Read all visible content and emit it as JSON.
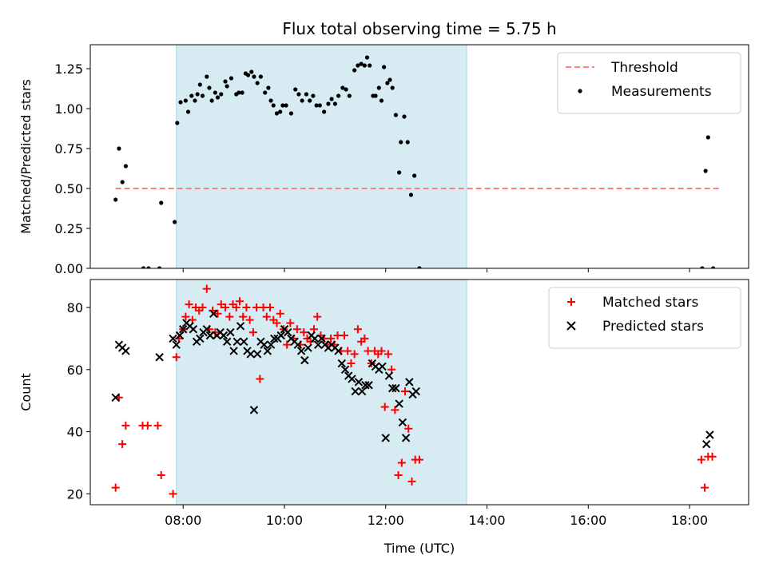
{
  "title": "Flux total observing time = 5.75 h",
  "colors": {
    "shade": "#add8e6",
    "threshold": "#ff7f7f",
    "matched": "#ff0000",
    "predicted": "#000000",
    "measurement": "#000000"
  },
  "chart_data": [
    {
      "type": "scatter",
      "panel": "top",
      "title": "Flux total observing time = 5.75 h",
      "xlabel": "",
      "ylabel": "Matched/Predicted stars",
      "xlim": [
        "06:10",
        "19:10"
      ],
      "ylim": [
        0,
        1.4
      ],
      "yticks": [
        0.0,
        0.25,
        0.5,
        0.75,
        1.0,
        1.25
      ],
      "ytick_labels": [
        "0.00",
        "0.25",
        "0.50",
        "0.75",
        "1.00",
        "1.25"
      ],
      "xticks": [
        "08:00",
        "10:00",
        "12:00",
        "14:00",
        "16:00",
        "18:00"
      ],
      "shaded_span": [
        "07:52",
        "13:36"
      ],
      "legend_position": "upper right",
      "threshold": {
        "name": "Threshold",
        "value": 0.5,
        "x_range": [
          "06:40",
          "18:35"
        ],
        "style": "dashed"
      },
      "series": [
        {
          "name": "Measurements",
          "marker": "dot",
          "points": [
            [
              "06:40",
              0.43
            ],
            [
              "06:44",
              0.75
            ],
            [
              "06:48",
              0.54
            ],
            [
              "06:52",
              0.64
            ],
            [
              "07:13",
              0.0
            ],
            [
              "07:19",
              0.0
            ],
            [
              "07:32",
              0.0
            ],
            [
              "07:34",
              0.41
            ],
            [
              "07:50",
              0.29
            ],
            [
              "07:53",
              0.91
            ],
            [
              "07:57",
              1.04
            ],
            [
              "08:03",
              1.05
            ],
            [
              "08:06",
              0.98
            ],
            [
              "08:10",
              1.08
            ],
            [
              "08:14",
              1.05
            ],
            [
              "08:17",
              1.09
            ],
            [
              "08:20",
              1.15
            ],
            [
              "08:23",
              1.08
            ],
            [
              "08:28",
              1.2
            ],
            [
              "08:31",
              1.13
            ],
            [
              "08:34",
              1.05
            ],
            [
              "08:38",
              1.1
            ],
            [
              "08:41",
              1.07
            ],
            [
              "08:45",
              1.09
            ],
            [
              "08:50",
              1.17
            ],
            [
              "08:52",
              1.14
            ],
            [
              "08:57",
              1.19
            ],
            [
              "09:03",
              1.09
            ],
            [
              "09:06",
              1.1
            ],
            [
              "09:10",
              1.1
            ],
            [
              "09:14",
              1.22
            ],
            [
              "09:17",
              1.21
            ],
            [
              "09:21",
              1.23
            ],
            [
              "09:24",
              1.2
            ],
            [
              "09:28",
              1.16
            ],
            [
              "09:32",
              1.2
            ],
            [
              "09:37",
              1.1
            ],
            [
              "09:41",
              1.13
            ],
            [
              "09:44",
              1.05
            ],
            [
              "09:47",
              1.02
            ],
            [
              "09:51",
              0.97
            ],
            [
              "09:55",
              0.98
            ],
            [
              "09:58",
              1.02
            ],
            [
              "10:02",
              1.02
            ],
            [
              "10:08",
              0.97
            ],
            [
              "10:13",
              1.12
            ],
            [
              "10:17",
              1.09
            ],
            [
              "10:21",
              1.05
            ],
            [
              "10:26",
              1.09
            ],
            [
              "10:30",
              1.05
            ],
            [
              "10:34",
              1.08
            ],
            [
              "10:38",
              1.02
            ],
            [
              "10:42",
              1.02
            ],
            [
              "10:47",
              0.98
            ],
            [
              "10:52",
              1.03
            ],
            [
              "10:56",
              1.06
            ],
            [
              "11:00",
              1.03
            ],
            [
              "11:04",
              1.08
            ],
            [
              "11:09",
              1.13
            ],
            [
              "11:13",
              1.12
            ],
            [
              "11:17",
              1.08
            ],
            [
              "11:23",
              1.24
            ],
            [
              "11:27",
              1.27
            ],
            [
              "11:31",
              1.28
            ],
            [
              "11:35",
              1.27
            ],
            [
              "11:38",
              1.32
            ],
            [
              "11:41",
              1.27
            ],
            [
              "11:45",
              1.08
            ],
            [
              "11:48",
              1.08
            ],
            [
              "11:52",
              1.13
            ],
            [
              "11:55",
              1.05
            ],
            [
              "11:58",
              1.26
            ],
            [
              "12:02",
              1.16
            ],
            [
              "12:05",
              1.18
            ],
            [
              "12:08",
              1.13
            ],
            [
              "12:12",
              0.96
            ],
            [
              "12:16",
              0.6
            ],
            [
              "12:18",
              0.79
            ],
            [
              "12:22",
              0.95
            ],
            [
              "12:26",
              0.79
            ],
            [
              "12:30",
              0.46
            ],
            [
              "12:34",
              0.58
            ],
            [
              "12:40",
              0.0
            ],
            [
              "18:15",
              0.0
            ],
            [
              "18:19",
              0.61
            ],
            [
              "18:22",
              0.82
            ],
            [
              "18:28",
              0.0
            ]
          ]
        }
      ]
    },
    {
      "type": "scatter",
      "panel": "bottom",
      "title": "",
      "xlabel": "Time (UTC)",
      "ylabel": "Count",
      "xlim": [
        "06:10",
        "19:10"
      ],
      "ylim": [
        16.5,
        89
      ],
      "yticks": [
        20,
        40,
        60,
        80
      ],
      "ytick_labels": [
        "20",
        "40",
        "60",
        "80"
      ],
      "xticks": [
        "08:00",
        "10:00",
        "12:00",
        "14:00",
        "16:00",
        "18:00"
      ],
      "shaded_span": [
        "07:52",
        "13:36"
      ],
      "legend_position": "upper right",
      "series": [
        {
          "name": "Matched stars",
          "marker": "plus",
          "points": [
            [
              "06:40",
              22
            ],
            [
              "06:44",
              51
            ],
            [
              "06:48",
              36
            ],
            [
              "06:52",
              42
            ],
            [
              "07:12",
              42
            ],
            [
              "07:18",
              42
            ],
            [
              "07:30",
              42
            ],
            [
              "07:34",
              26
            ],
            [
              "07:48",
              20
            ],
            [
              "07:52",
              64
            ],
            [
              "07:55",
              70
            ],
            [
              "08:00",
              73
            ],
            [
              "08:03",
              77
            ],
            [
              "08:07",
              81
            ],
            [
              "08:11",
              76
            ],
            [
              "08:15",
              80
            ],
            [
              "08:19",
              79
            ],
            [
              "08:23",
              80
            ],
            [
              "08:28",
              86
            ],
            [
              "08:31",
              73
            ],
            [
              "08:35",
              79
            ],
            [
              "08:38",
              72
            ],
            [
              "08:41",
              78
            ],
            [
              "08:45",
              81
            ],
            [
              "08:50",
              80
            ],
            [
              "08:55",
              77
            ],
            [
              "08:59",
              81
            ],
            [
              "09:03",
              80
            ],
            [
              "09:07",
              82
            ],
            [
              "09:11",
              77
            ],
            [
              "09:15",
              80
            ],
            [
              "09:19",
              76
            ],
            [
              "09:23",
              72
            ],
            [
              "09:27",
              80
            ],
            [
              "09:31",
              57
            ],
            [
              "09:35",
              80
            ],
            [
              "09:39",
              77
            ],
            [
              "09:43",
              80
            ],
            [
              "09:47",
              76
            ],
            [
              "09:51",
              75
            ],
            [
              "09:55",
              78
            ],
            [
              "09:59",
              73
            ],
            [
              "10:03",
              68
            ],
            [
              "10:07",
              75
            ],
            [
              "10:11",
              70
            ],
            [
              "10:15",
              73
            ],
            [
              "10:19",
              68
            ],
            [
              "10:23",
              72
            ],
            [
              "10:27",
              70
            ],
            [
              "10:31",
              69
            ],
            [
              "10:35",
              73
            ],
            [
              "10:39",
              77
            ],
            [
              "10:43",
              71
            ],
            [
              "10:47",
              70
            ],
            [
              "10:51",
              68
            ],
            [
              "10:55",
              70
            ],
            [
              "10:59",
              68
            ],
            [
              "11:03",
              71
            ],
            [
              "11:07",
              66
            ],
            [
              "11:11",
              71
            ],
            [
              "11:15",
              66
            ],
            [
              "11:19",
              62
            ],
            [
              "11:23",
              65
            ],
            [
              "11:27",
              73
            ],
            [
              "11:31",
              69
            ],
            [
              "11:35",
              70
            ],
            [
              "11:39",
              66
            ],
            [
              "11:43",
              62
            ],
            [
              "11:47",
              66
            ],
            [
              "11:51",
              65
            ],
            [
              "11:55",
              66
            ],
            [
              "11:59",
              48
            ],
            [
              "12:03",
              65
            ],
            [
              "12:07",
              60
            ],
            [
              "12:11",
              47
            ],
            [
              "12:15",
              26
            ],
            [
              "12:19",
              30
            ],
            [
              "12:23",
              53
            ],
            [
              "12:27",
              41
            ],
            [
              "12:31",
              24
            ],
            [
              "12:35",
              31
            ],
            [
              "12:40",
              31
            ],
            [
              "18:14",
              31
            ],
            [
              "18:18",
              22
            ],
            [
              "18:22",
              32
            ],
            [
              "18:27",
              32
            ]
          ]
        },
        {
          "name": "Predicted stars",
          "marker": "x",
          "points": [
            [
              "06:40",
              51
            ],
            [
              "06:44",
              68
            ],
            [
              "06:48",
              67
            ],
            [
              "06:52",
              66
            ],
            [
              "07:32",
              64
            ],
            [
              "07:48",
              70
            ],
            [
              "07:52",
              68
            ],
            [
              "07:56",
              71
            ],
            [
              "08:00",
              73
            ],
            [
              "08:04",
              75
            ],
            [
              "08:08",
              74
            ],
            [
              "08:12",
              73
            ],
            [
              "08:16",
              69
            ],
            [
              "08:20",
              70
            ],
            [
              "08:24",
              72
            ],
            [
              "08:28",
              73
            ],
            [
              "08:32",
              71
            ],
            [
              "08:36",
              78
            ],
            [
              "08:40",
              71
            ],
            [
              "08:44",
              72
            ],
            [
              "08:48",
              71
            ],
            [
              "08:52",
              69
            ],
            [
              "08:56",
              72
            ],
            [
              "09:00",
              66
            ],
            [
              "09:04",
              69
            ],
            [
              "09:08",
              74
            ],
            [
              "09:12",
              69
            ],
            [
              "09:16",
              66
            ],
            [
              "09:20",
              65
            ],
            [
              "09:24",
              47
            ],
            [
              "09:28",
              65
            ],
            [
              "09:32",
              69
            ],
            [
              "09:36",
              68
            ],
            [
              "09:40",
              66
            ],
            [
              "09:44",
              68
            ],
            [
              "09:48",
              70
            ],
            [
              "09:52",
              70
            ],
            [
              "09:56",
              71
            ],
            [
              "10:00",
              73
            ],
            [
              "10:04",
              72
            ],
            [
              "10:08",
              70
            ],
            [
              "10:12",
              69
            ],
            [
              "10:16",
              68
            ],
            [
              "10:20",
              66
            ],
            [
              "10:24",
              63
            ],
            [
              "10:28",
              67
            ],
            [
              "10:32",
              71
            ],
            [
              "10:36",
              70
            ],
            [
              "10:40",
              68
            ],
            [
              "10:44",
              70
            ],
            [
              "10:48",
              68
            ],
            [
              "10:52",
              67
            ],
            [
              "10:56",
              68
            ],
            [
              "11:00",
              67
            ],
            [
              "11:04",
              66
            ],
            [
              "11:08",
              62
            ],
            [
              "11:12",
              60
            ],
            [
              "11:16",
              58
            ],
            [
              "11:20",
              57
            ],
            [
              "11:24",
              53
            ],
            [
              "11:28",
              56
            ],
            [
              "11:32",
              53
            ],
            [
              "11:36",
              55
            ],
            [
              "11:40",
              55
            ],
            [
              "11:44",
              62
            ],
            [
              "11:48",
              61
            ],
            [
              "11:52",
              60
            ],
            [
              "11:56",
              61
            ],
            [
              "12:00",
              38
            ],
            [
              "12:04",
              58
            ],
            [
              "12:08",
              54
            ],
            [
              "12:12",
              54
            ],
            [
              "12:16",
              49
            ],
            [
              "12:20",
              43
            ],
            [
              "12:24",
              38
            ],
            [
              "12:28",
              56
            ],
            [
              "12:32",
              52
            ],
            [
              "12:36",
              53
            ],
            [
              "18:20",
              36
            ],
            [
              "18:24",
              39
            ]
          ]
        }
      ]
    }
  ]
}
